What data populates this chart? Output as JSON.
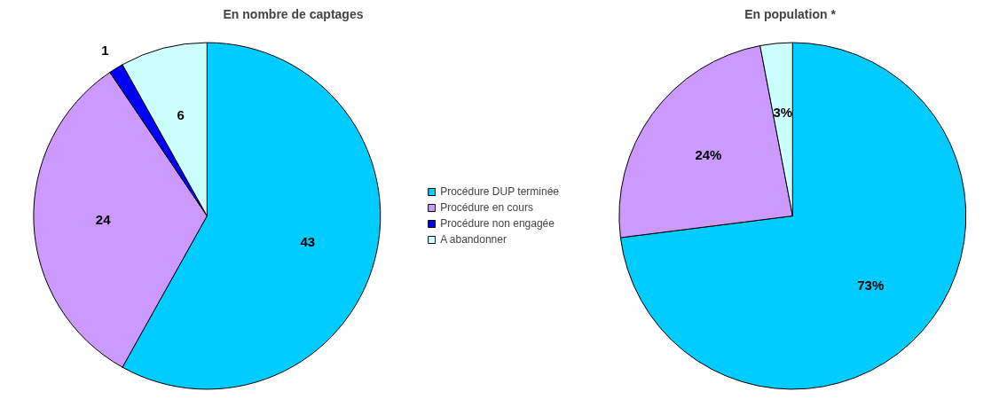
{
  "chart_data": [
    {
      "type": "pie",
      "title": "En nombre de captages",
      "categories": [
        "Procédure DUP terminée",
        "Procédure en cours",
        "Procédure non engagée",
        "A abandonner"
      ],
      "values": [
        43,
        24,
        1,
        6
      ],
      "colors": [
        "#00ccff",
        "#cc99ff",
        "#0000ff",
        "#ccffff"
      ],
      "data_labels": true,
      "legend": "right"
    },
    {
      "type": "pie",
      "title": "En population *",
      "categories": [
        null,
        null,
        null
      ],
      "values": [
        73,
        24,
        3
      ],
      "colors": [
        "#00ccff",
        "#cc99ff",
        "#ccffff"
      ],
      "value_labels": [
        "73%",
        "24%",
        "3%"
      ],
      "legend": false
    }
  ]
}
